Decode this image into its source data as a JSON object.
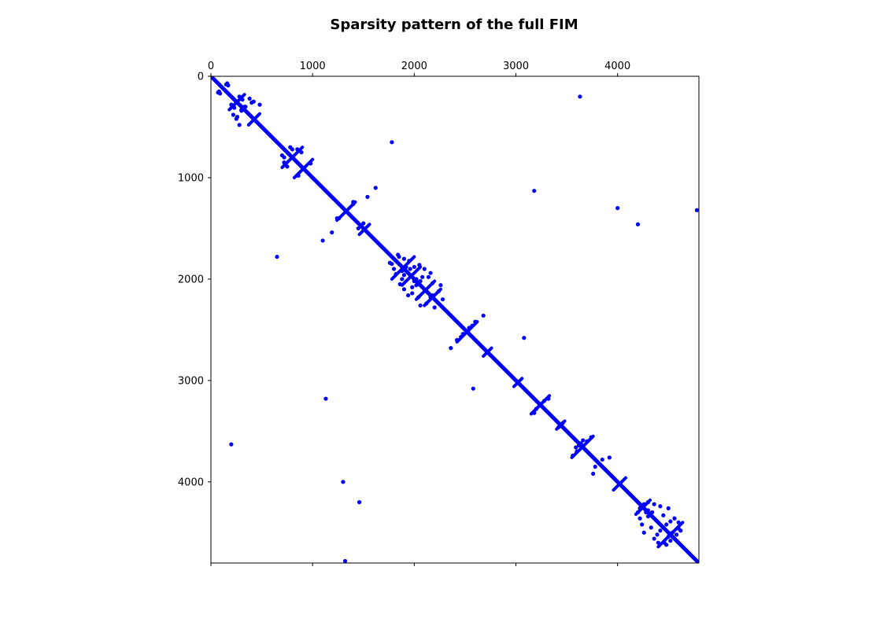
{
  "chart_data": {
    "type": "scatter",
    "title": "Sparsity pattern of the full FIM",
    "xlabel": "",
    "ylabel": "",
    "xlim": [
      0,
      4800
    ],
    "ylim": [
      4800,
      0
    ],
    "x_axis_position": "top",
    "x_ticks": [
      0,
      1000,
      2000,
      3000,
      4000
    ],
    "x_tick_labels": [
      "0",
      "1000",
      "2000",
      "3000",
      "4000"
    ],
    "y_ticks": [
      0,
      1000,
      2000,
      3000,
      4000
    ],
    "y_tick_labels": [
      "0",
      "1000",
      "2000",
      "3000",
      "4000"
    ],
    "grid": false,
    "color": "#0000ff",
    "diagonal": {
      "from": [
        0,
        0
      ],
      "to": [
        4800,
        4800
      ]
    },
    "off_diagonal_segments": [
      {
        "from": [
          180,
          330
        ],
        "to": [
          330,
          180
        ]
      },
      {
        "from": [
          370,
          480
        ],
        "to": [
          480,
          370
        ]
      },
      {
        "from": [
          700,
          900
        ],
        "to": [
          900,
          700
        ]
      },
      {
        "from": [
          820,
          1000
        ],
        "to": [
          1000,
          820
        ]
      },
      {
        "from": [
          1240,
          1420
        ],
        "to": [
          1420,
          1240
        ]
      },
      {
        "from": [
          1460,
          1560
        ],
        "to": [
          1560,
          1460
        ]
      },
      {
        "from": [
          1780,
          2000
        ],
        "to": [
          2000,
          1780
        ]
      },
      {
        "from": [
          1880,
          2060
        ],
        "to": [
          2060,
          1880
        ]
      },
      {
        "from": [
          2020,
          2200
        ],
        "to": [
          2200,
          2020
        ]
      },
      {
        "from": [
          2100,
          2260
        ],
        "to": [
          2260,
          2100
        ]
      },
      {
        "from": [
          2420,
          2620
        ],
        "to": [
          2620,
          2420
        ]
      },
      {
        "from": [
          2680,
          2760
        ],
        "to": [
          2760,
          2680
        ]
      },
      {
        "from": [
          2980,
          3060
        ],
        "to": [
          3060,
          2980
        ]
      },
      {
        "from": [
          3150,
          3330
        ],
        "to": [
          3330,
          3150
        ]
      },
      {
        "from": [
          3400,
          3480
        ],
        "to": [
          3480,
          3400
        ]
      },
      {
        "from": [
          3550,
          3760
        ],
        "to": [
          3760,
          3550
        ]
      },
      {
        "from": [
          3960,
          4080
        ],
        "to": [
          4080,
          3960
        ]
      },
      {
        "from": [
          4180,
          4320
        ],
        "to": [
          4320,
          4180
        ]
      },
      {
        "from": [
          4400,
          4640
        ],
        "to": [
          4640,
          4400
        ]
      }
    ],
    "points": [
      [
        70,
        160
      ],
      [
        160,
        70
      ],
      [
        80,
        150
      ],
      [
        150,
        80
      ],
      [
        90,
        170
      ],
      [
        170,
        90
      ],
      [
        200,
        280
      ],
      [
        280,
        200
      ],
      [
        220,
        380
      ],
      [
        380,
        220
      ],
      [
        260,
        400
      ],
      [
        400,
        260
      ],
      [
        280,
        480
      ],
      [
        480,
        280
      ],
      [
        300,
        340
      ],
      [
        340,
        300
      ],
      [
        330,
        300
      ],
      [
        300,
        330
      ],
      [
        230,
        310
      ],
      [
        310,
        230
      ],
      [
        250,
        420
      ],
      [
        420,
        250
      ],
      [
        700,
        780
      ],
      [
        780,
        700
      ],
      [
        720,
        850
      ],
      [
        850,
        720
      ],
      [
        750,
        890
      ],
      [
        890,
        750
      ],
      [
        860,
        980
      ],
      [
        980,
        860
      ],
      [
        760,
        760
      ],
      [
        800,
        720
      ],
      [
        720,
        800
      ],
      [
        1260,
        1400
      ],
      [
        1400,
        1260
      ],
      [
        1400,
        1240
      ],
      [
        1240,
        1400
      ],
      [
        1450,
        1500
      ],
      [
        1500,
        1450
      ],
      [
        1190,
        1540
      ],
      [
        1540,
        1190
      ],
      [
        1100,
        1620
      ],
      [
        1620,
        1100
      ],
      [
        1780,
        1850
      ],
      [
        1850,
        1780
      ],
      [
        1800,
        1900
      ],
      [
        1900,
        1800
      ],
      [
        1820,
        1950
      ],
      [
        1950,
        1820
      ],
      [
        1860,
        2050
      ],
      [
        2050,
        1860
      ],
      [
        1900,
        2100
      ],
      [
        2100,
        1900
      ],
      [
        1940,
        2160
      ],
      [
        2160,
        1940
      ],
      [
        1980,
        2080
      ],
      [
        2080,
        1980
      ],
      [
        2000,
        2020
      ],
      [
        2020,
        2000
      ],
      [
        1840,
        1760
      ],
      [
        1760,
        1840
      ],
      [
        1880,
        2000
      ],
      [
        2000,
        1880
      ],
      [
        1920,
        1880
      ],
      [
        1880,
        1920
      ],
      [
        2060,
        2260
      ],
      [
        2260,
        2060
      ],
      [
        2120,
        2240
      ],
      [
        2240,
        2120
      ],
      [
        2180,
        2160
      ],
      [
        2160,
        2180
      ],
      [
        2200,
        2280
      ],
      [
        2280,
        2200
      ],
      [
        2040,
        2180
      ],
      [
        2180,
        2040
      ],
      [
        1960,
        1900
      ],
      [
        1900,
        1960
      ],
      [
        1980,
        2140
      ],
      [
        2140,
        1980
      ],
      [
        2020,
        2060
      ],
      [
        2060,
        2020
      ],
      [
        1820,
        1820
      ],
      [
        2120,
        2120
      ],
      [
        2360,
        2680
      ],
      [
        2680,
        2360
      ],
      [
        2420,
        2600
      ],
      [
        2600,
        2420
      ],
      [
        2460,
        2570
      ],
      [
        2570,
        2460
      ],
      [
        2480,
        2540
      ],
      [
        2540,
        2480
      ],
      [
        3080,
        2580
      ],
      [
        2580,
        3080
      ],
      [
        3200,
        3280
      ],
      [
        3280,
        3200
      ],
      [
        3180,
        3320
      ],
      [
        3320,
        3180
      ],
      [
        3460,
        3420
      ],
      [
        3420,
        3460
      ],
      [
        3560,
        3740
      ],
      [
        3740,
        3560
      ],
      [
        3600,
        3700
      ],
      [
        3700,
        3600
      ],
      [
        3760,
        3920
      ],
      [
        3920,
        3760
      ],
      [
        3780,
        3850
      ],
      [
        3850,
        3780
      ],
      [
        3640,
        3620
      ],
      [
        3620,
        3640
      ],
      [
        3660,
        3590
      ],
      [
        3590,
        3660
      ],
      [
        4200,
        4300
      ],
      [
        4300,
        4200
      ],
      [
        4220,
        4360
      ],
      [
        4360,
        4220
      ],
      [
        4240,
        4420
      ],
      [
        4420,
        4240
      ],
      [
        4260,
        4500
      ],
      [
        4500,
        4260
      ],
      [
        4300,
        4280
      ],
      [
        4280,
        4300
      ],
      [
        4330,
        4450
      ],
      [
        4450,
        4330
      ],
      [
        4360,
        4560
      ],
      [
        4560,
        4360
      ],
      [
        4390,
        4520
      ],
      [
        4520,
        4390
      ],
      [
        4420,
        4480
      ],
      [
        4480,
        4420
      ],
      [
        4460,
        4600
      ],
      [
        4600,
        4460
      ],
      [
        4500,
        4540
      ],
      [
        4540,
        4500
      ],
      [
        4520,
        4580
      ],
      [
        4580,
        4520
      ],
      [
        4240,
        4240
      ],
      [
        4300,
        4340
      ],
      [
        4340,
        4300
      ],
      [
        4380,
        4380
      ],
      [
        4220,
        4260
      ],
      [
        4260,
        4220
      ],
      [
        4400,
        4600
      ],
      [
        4600,
        4400
      ],
      [
        4480,
        4620
      ],
      [
        4620,
        4480
      ],
      [
        200,
        3630
      ],
      [
        3630,
        200
      ],
      [
        1780,
        650
      ],
      [
        650,
        1780
      ],
      [
        3180,
        1130
      ],
      [
        1130,
        3180
      ],
      [
        4000,
        1300
      ],
      [
        1300,
        4000
      ],
      [
        4200,
        1460
      ],
      [
        1460,
        4200
      ],
      [
        4780,
        1320
      ],
      [
        1320,
        4780
      ]
    ]
  }
}
